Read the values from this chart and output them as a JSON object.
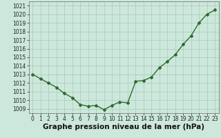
{
  "x": [
    0,
    1,
    2,
    3,
    4,
    5,
    6,
    7,
    8,
    9,
    10,
    11,
    12,
    13,
    14,
    15,
    16,
    17,
    18,
    19,
    20,
    21,
    22,
    23
  ],
  "y": [
    1013.0,
    1012.5,
    1012.0,
    1011.5,
    1010.8,
    1010.3,
    1009.5,
    1009.3,
    1009.4,
    1008.9,
    1009.4,
    1009.8,
    1009.7,
    1012.2,
    1012.3,
    1012.7,
    1013.8,
    1014.5,
    1015.3,
    1016.5,
    1017.5,
    1019.0,
    1020.0,
    1020.5
  ],
  "line_color": "#2d6a2d",
  "marker": "D",
  "marker_size": 2.0,
  "bg_color": "#cce8dc",
  "grid_color": "#aac8b8",
  "xlabel": "Graphe pression niveau de la mer (hPa)",
  "xlabel_fontsize": 7.5,
  "ylim": [
    1008.5,
    1021.5
  ],
  "yticks": [
    1009,
    1010,
    1011,
    1012,
    1013,
    1014,
    1015,
    1016,
    1017,
    1018,
    1019,
    1020,
    1021
  ],
  "xticks": [
    0,
    1,
    2,
    3,
    4,
    5,
    6,
    7,
    8,
    9,
    10,
    11,
    12,
    13,
    14,
    15,
    16,
    17,
    18,
    19,
    20,
    21,
    22,
    23
  ],
  "tick_fontsize": 5.5,
  "line_width": 1.0
}
